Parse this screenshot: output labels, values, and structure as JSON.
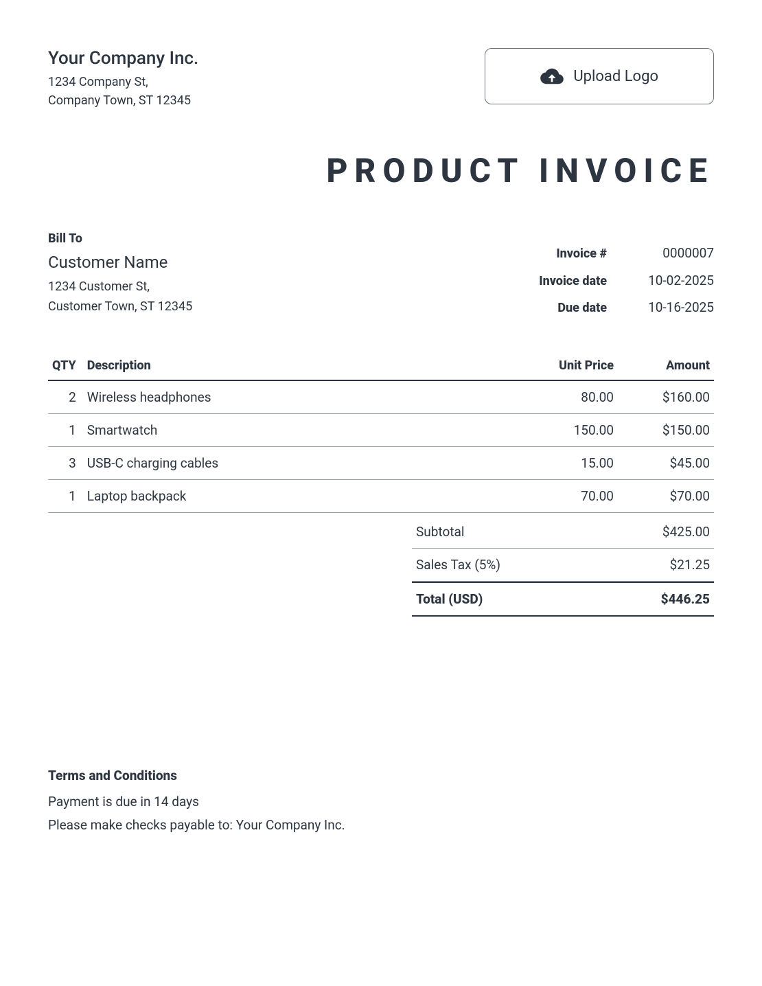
{
  "company": {
    "name": "Your Company Inc.",
    "address_line1": "1234 Company St,",
    "address_line2": "Company Town, ST 12345"
  },
  "upload_logo": {
    "label": "Upload Logo"
  },
  "doc_title": "PRODUCT INVOICE",
  "bill_to": {
    "heading": "Bill To",
    "customer_name": "Customer Name",
    "address_line1": "1234 Customer St,",
    "address_line2": "Customer Town, ST 12345"
  },
  "meta": {
    "invoice_number_label": "Invoice #",
    "invoice_number": "0000007",
    "invoice_date_label": "Invoice date",
    "invoice_date": "10-02-2025",
    "due_date_label": "Due date",
    "due_date": "10-16-2025"
  },
  "table": {
    "columns": {
      "qty": "QTY",
      "description": "Description",
      "unit_price": "Unit Price",
      "amount": "Amount"
    },
    "rows": [
      {
        "qty": "2",
        "description": "Wireless headphones",
        "unit_price": "80.00",
        "amount": "$160.00"
      },
      {
        "qty": "1",
        "description": "Smartwatch",
        "unit_price": "150.00",
        "amount": "$150.00"
      },
      {
        "qty": "3",
        "description": "USB-C charging cables",
        "unit_price": "15.00",
        "amount": "$45.00"
      },
      {
        "qty": "1",
        "description": "Laptop backpack",
        "unit_price": "70.00",
        "amount": "$70.00"
      }
    ]
  },
  "totals": {
    "subtotal_label": "Subtotal",
    "subtotal": "$425.00",
    "tax_label": "Sales Tax (5%)",
    "tax": "$21.25",
    "total_label": "Total (USD)",
    "total": "$446.25"
  },
  "terms": {
    "heading": "Terms and Conditions",
    "line1": "Payment is due in 14 days",
    "line2": "Please make checks payable to: Your Company Inc."
  },
  "colors": {
    "text": "#2c3540",
    "border_light": "#9ca3af",
    "border_dark": "#2c3540",
    "background": "#ffffff"
  },
  "typography": {
    "title_fontsize": 48,
    "title_letterspacing": 10,
    "body_fontsize": 19,
    "heading_fontsize": 18
  }
}
